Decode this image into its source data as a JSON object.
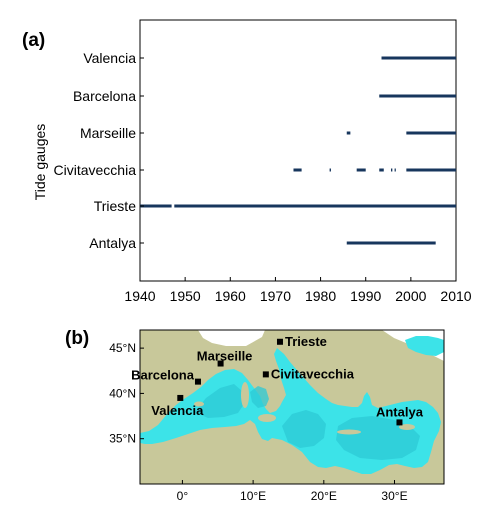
{
  "panel_a": {
    "label": "(a)",
    "chart_data": {
      "type": "timeline",
      "ylabel": "Tide gauges",
      "xlabel": "",
      "xlim": [
        1940,
        2010
      ],
      "xticks": [
        1940,
        1950,
        1960,
        1970,
        1980,
        1990,
        2000,
        2010
      ],
      "bar_color": "#17365d",
      "series": [
        {
          "name": "Valencia",
          "segments": [
            [
              1993.5,
              2010
            ]
          ]
        },
        {
          "name": "Barcelona",
          "segments": [
            [
              1993,
              2010
            ]
          ]
        },
        {
          "name": "Marseille",
          "segments": [
            [
              1985.8,
              1986.6
            ],
            [
              1999,
              2010
            ]
          ]
        },
        {
          "name": "Civitavecchia",
          "segments": [
            [
              1974,
              1975.8
            ],
            [
              1982,
              1982.3
            ],
            [
              1988,
              1990
            ],
            [
              1993,
              1994
            ],
            [
              1995.6,
              1995.9
            ],
            [
              1996.4,
              1996.6
            ],
            [
              1999,
              2010
            ]
          ]
        },
        {
          "name": "Trieste",
          "segments": [
            [
              1940,
              1947
            ],
            [
              1947.6,
              2010
            ]
          ]
        },
        {
          "name": "Antalya",
          "segments": [
            [
              1985.8,
              2005.5
            ]
          ]
        }
      ]
    }
  },
  "panel_b": {
    "label": "(b)",
    "chart_data": {
      "type": "map",
      "xlim": [
        -6,
        37
      ],
      "ylim": [
        30,
        47
      ],
      "xticks": [
        0,
        10,
        20,
        30
      ],
      "xtick_labels": [
        "0°",
        "10°E",
        "20°E",
        "30°E"
      ],
      "yticks": [
        35,
        40,
        45
      ],
      "ytick_labels": [
        "35°N",
        "40°N",
        "45°N"
      ],
      "colors": {
        "land": "#c8c89a",
        "sea": "#3ce3e8",
        "sea_deep": "#2ccad6",
        "frame": "#000000"
      },
      "stations": [
        {
          "name": "Valencia",
          "lon": -0.3,
          "lat": 39.5
        },
        {
          "name": "Barcelona",
          "lon": 2.2,
          "lat": 41.3
        },
        {
          "name": "Marseille",
          "lon": 5.4,
          "lat": 43.3
        },
        {
          "name": "Trieste",
          "lon": 13.8,
          "lat": 45.7
        },
        {
          "name": "Civitavecchia",
          "lon": 11.8,
          "lat": 42.1
        },
        {
          "name": "Antalya",
          "lon": 30.7,
          "lat": 36.8
        }
      ]
    }
  }
}
